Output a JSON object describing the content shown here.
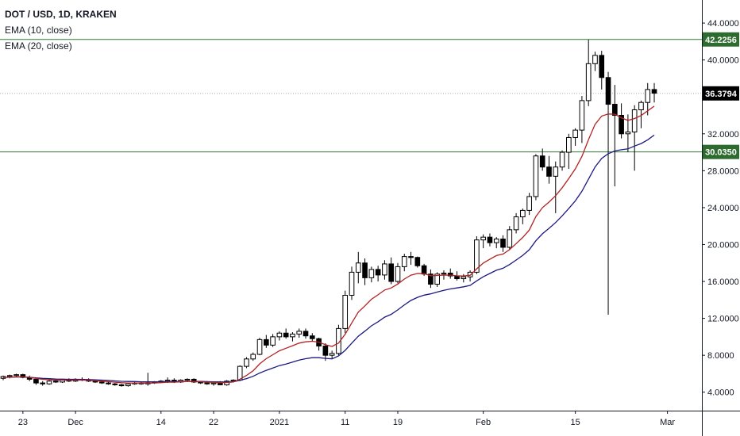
{
  "legend": {
    "title": "DOT / USD, 1D, KRAKEN",
    "ema10": "EMA (10, close)",
    "ema20": "EMA (20, close)"
  },
  "colors": {
    "up_body": "#ffffff",
    "down_body": "#000000",
    "wick": "#000000",
    "ema10": "#b22222",
    "ema20": "#1a1a80",
    "hline": "#2e7d32",
    "current_line": "#b0b0b0",
    "badge_green": "#2e6b2e",
    "badge_current": "#000000"
  },
  "chart_data": {
    "type": "candlestick",
    "title": "DOT / USD, 1D, KRAKEN",
    "y_axis": {
      "side": "right",
      "range": [
        2.0,
        46.5
      ],
      "ticks": [
        "44.0000",
        "40.0000",
        "36.0000",
        "32.0000",
        "28.0000",
        "24.0000",
        "20.0000",
        "16.0000",
        "12.0000",
        "8.0000",
        "4.0000"
      ],
      "tick_values": [
        44,
        40,
        36,
        32,
        28,
        24,
        20,
        16,
        12,
        8,
        4
      ]
    },
    "x_axis": {
      "first_date": "2020-11-20",
      "last_date": "2021-03-02",
      "labels": [
        {
          "label": "23",
          "date": "2020-11-23"
        },
        {
          "label": "Dec",
          "date": "2020-12-01"
        },
        {
          "label": "14",
          "date": "2020-12-14"
        },
        {
          "label": "22",
          "date": "2020-12-22"
        },
        {
          "label": "2021",
          "date": "2021-01-01"
        },
        {
          "label": "11",
          "date": "2021-01-11"
        },
        {
          "label": "19",
          "date": "2021-01-19"
        },
        {
          "label": "Feb",
          "date": "2021-02-01"
        },
        {
          "label": "15",
          "date": "2021-02-15"
        },
        {
          "label": "Mar",
          "date": "2021-03-01"
        }
      ],
      "range": [
        "2020-11-20",
        "2021-03-06"
      ]
    },
    "horizontal_lines": [
      {
        "value": 42.2256,
        "label": "42.2256",
        "style": "solid"
      },
      {
        "value": 30.035,
        "label": "30.0350",
        "style": "solid"
      }
    ],
    "current_price": {
      "value": 36.3794,
      "label": "36.3794",
      "style": "dotted"
    },
    "grid": false,
    "series_ohlc": [
      [
        5.5,
        5.8,
        5.3,
        5.7
      ],
      [
        5.7,
        5.9,
        5.5,
        5.8
      ],
      [
        5.8,
        6.0,
        5.6,
        5.9
      ],
      [
        5.9,
        6.0,
        5.5,
        5.6
      ],
      [
        5.6,
        5.8,
        5.2,
        5.4
      ],
      [
        5.4,
        5.6,
        4.8,
        5.0
      ],
      [
        5.0,
        5.2,
        4.7,
        4.9
      ],
      [
        4.9,
        5.3,
        4.8,
        5.2
      ],
      [
        5.2,
        5.4,
        5.0,
        5.1
      ],
      [
        5.1,
        5.4,
        5.0,
        5.3
      ],
      [
        5.3,
        5.5,
        5.1,
        5.2
      ],
      [
        5.2,
        5.5,
        5.1,
        5.4
      ],
      [
        5.4,
        5.6,
        5.2,
        5.3
      ],
      [
        5.3,
        5.5,
        5.1,
        5.2
      ],
      [
        5.2,
        5.3,
        5.0,
        5.1
      ],
      [
        5.1,
        5.2,
        4.9,
        5.0
      ],
      [
        5.0,
        5.1,
        4.8,
        4.9
      ],
      [
        4.9,
        5.0,
        4.7,
        4.8
      ],
      [
        4.8,
        4.9,
        4.6,
        4.7
      ],
      [
        4.7,
        5.0,
        4.6,
        4.9
      ],
      [
        4.9,
        5.1,
        4.8,
        5.0
      ],
      [
        5.0,
        5.1,
        4.8,
        4.9
      ],
      [
        4.9,
        6.1,
        4.7,
        5.0
      ],
      [
        5.0,
        5.2,
        4.9,
        5.1
      ],
      [
        5.1,
        5.3,
        5.0,
        5.2
      ],
      [
        5.2,
        5.6,
        5.0,
        5.3
      ],
      [
        5.3,
        5.5,
        5.0,
        5.1
      ],
      [
        5.1,
        5.4,
        5.0,
        5.3
      ],
      [
        5.3,
        5.5,
        5.1,
        5.4
      ],
      [
        5.4,
        5.5,
        5.0,
        5.1
      ],
      [
        5.1,
        5.2,
        4.9,
        5.0
      ],
      [
        5.0,
        5.2,
        4.8,
        4.9
      ],
      [
        4.9,
        5.1,
        4.7,
        5.0
      ],
      [
        5.0,
        5.2,
        4.8,
        4.8
      ],
      [
        4.8,
        5.3,
        4.7,
        5.2
      ],
      [
        5.2,
        5.4,
        5.1,
        5.3
      ],
      [
        5.3,
        6.9,
        5.2,
        6.8
      ],
      [
        6.8,
        7.8,
        6.6,
        7.6
      ],
      [
        7.6,
        8.3,
        7.4,
        8.1
      ],
      [
        8.1,
        9.9,
        8.0,
        9.7
      ],
      [
        9.7,
        10.2,
        8.8,
        9.1
      ],
      [
        9.1,
        10.3,
        8.9,
        10.0
      ],
      [
        10.0,
        10.6,
        9.6,
        10.4
      ],
      [
        10.4,
        10.9,
        9.8,
        10.0
      ],
      [
        10.0,
        10.5,
        9.5,
        10.3
      ],
      [
        10.3,
        10.9,
        9.9,
        10.6
      ],
      [
        10.6,
        10.9,
        9.8,
        10.1
      ],
      [
        10.1,
        10.4,
        9.5,
        9.8
      ],
      [
        9.8,
        9.9,
        8.5,
        9.0
      ],
      [
        9.0,
        9.3,
        7.4,
        8.0
      ],
      [
        8.0,
        8.5,
        7.6,
        8.2
      ],
      [
        8.2,
        11.3,
        8.0,
        10.9
      ],
      [
        10.9,
        15.0,
        10.4,
        14.5
      ],
      [
        14.5,
        17.6,
        14.0,
        17.0
      ],
      [
        17.0,
        19.2,
        15.8,
        18.0
      ],
      [
        18.0,
        18.5,
        15.6,
        16.4
      ],
      [
        16.4,
        17.6,
        15.9,
        17.3
      ],
      [
        17.3,
        17.7,
        16.0,
        16.7
      ],
      [
        16.7,
        18.3,
        16.2,
        17.9
      ],
      [
        17.9,
        18.6,
        15.7,
        16.0
      ],
      [
        16.0,
        18.0,
        15.8,
        17.6
      ],
      [
        17.6,
        19.0,
        17.1,
        18.7
      ],
      [
        18.7,
        19.2,
        17.8,
        18.6
      ],
      [
        18.6,
        18.7,
        17.5,
        17.7
      ],
      [
        17.7,
        17.9,
        16.6,
        16.8
      ],
      [
        16.8,
        17.3,
        15.3,
        15.7
      ],
      [
        15.7,
        17.0,
        15.4,
        16.8
      ],
      [
        16.8,
        17.2,
        16.2,
        16.9
      ],
      [
        16.9,
        17.4,
        16.3,
        16.6
      ],
      [
        16.6,
        17.1,
        16.1,
        16.3
      ],
      [
        16.3,
        16.8,
        15.9,
        16.5
      ],
      [
        16.5,
        17.2,
        16.0,
        17.0
      ],
      [
        17.0,
        20.9,
        16.8,
        20.5
      ],
      [
        20.5,
        21.1,
        19.6,
        20.8
      ],
      [
        20.8,
        21.2,
        19.8,
        20.2
      ],
      [
        20.2,
        20.8,
        19.6,
        20.6
      ],
      [
        20.6,
        21.0,
        19.2,
        19.7
      ],
      [
        19.7,
        22.0,
        19.4,
        21.6
      ],
      [
        21.6,
        23.4,
        21.2,
        23.0
      ],
      [
        23.0,
        23.9,
        22.2,
        23.7
      ],
      [
        23.7,
        25.6,
        23.2,
        25.2
      ],
      [
        25.2,
        29.8,
        24.8,
        29.6
      ],
      [
        29.6,
        30.4,
        28.0,
        28.4
      ],
      [
        28.4,
        29.6,
        26.6,
        27.4
      ],
      [
        27.4,
        29.0,
        23.4,
        28.4
      ],
      [
        28.4,
        30.2,
        28.0,
        30.0
      ],
      [
        30.0,
        32.0,
        28.2,
        31.6
      ],
      [
        31.6,
        32.6,
        30.7,
        32.4
      ],
      [
        32.4,
        36.1,
        31.0,
        35.6
      ],
      [
        35.6,
        42.2,
        35.0,
        39.6
      ],
      [
        39.6,
        40.9,
        38.8,
        40.5
      ],
      [
        40.5,
        41.0,
        36.8,
        38.1
      ],
      [
        38.1,
        38.7,
        12.4,
        35.2
      ],
      [
        35.2,
        37.3,
        26.3,
        34.0
      ],
      [
        34.0,
        35.3,
        31.5,
        32.0
      ],
      [
        32.0,
        34.1,
        30.0,
        32.2
      ],
      [
        32.2,
        35.1,
        28.0,
        34.6
      ],
      [
        34.6,
        35.6,
        32.6,
        35.4
      ],
      [
        35.4,
        37.5,
        34.0,
        36.8
      ],
      [
        36.8,
        37.5,
        35.4,
        36.4
      ]
    ],
    "ema10": [
      5.6,
      5.62,
      5.67,
      5.66,
      5.61,
      5.5,
      5.39,
      5.35,
      5.31,
      5.31,
      5.29,
      5.31,
      5.31,
      5.29,
      5.25,
      5.2,
      5.14,
      5.08,
      5.02,
      5.0,
      5.0,
      4.98,
      4.98,
      5.0,
      5.03,
      5.08,
      5.08,
      5.12,
      5.16,
      5.16,
      5.13,
      5.09,
      5.07,
      5.02,
      5.05,
      5.1,
      5.41,
      5.81,
      6.32,
      7.07,
      7.63,
      8.06,
      8.49,
      8.76,
      9.04,
      9.32,
      9.46,
      9.52,
      9.42,
      9.14,
      8.96,
      9.32,
      10.27,
      11.5,
      12.68,
      13.36,
      14.07,
      14.55,
      15.07,
      15.3,
      15.72,
      16.26,
      16.68,
      16.86,
      16.85,
      16.62,
      16.65,
      16.69,
      16.68,
      16.61,
      16.59,
      16.67,
      17.37,
      18.0,
      18.4,
      18.8,
      18.97,
      19.45,
      20.1,
      20.77,
      21.57,
      23.03,
      24.0,
      24.6,
      25.3,
      26.16,
      27.15,
      28.2,
      29.55,
      31.37,
      33.03,
      33.92,
      34.15,
      34.12,
      33.73,
      33.45,
      33.66,
      33.98,
      34.49,
      35.0
    ],
    "ema20": [
      5.6,
      5.62,
      5.64,
      5.64,
      5.62,
      5.56,
      5.5,
      5.46,
      5.42,
      5.41,
      5.39,
      5.39,
      5.38,
      5.37,
      5.34,
      5.31,
      5.27,
      5.22,
      5.18,
      5.16,
      5.15,
      5.13,
      5.12,
      5.12,
      5.13,
      5.14,
      5.14,
      5.16,
      5.17,
      5.18,
      5.17,
      5.14,
      5.13,
      5.11,
      5.11,
      5.13,
      5.28,
      5.47,
      5.72,
      6.07,
      6.36,
      6.61,
      6.88,
      7.04,
      7.26,
      7.48,
      7.63,
      7.74,
      7.74,
      7.66,
      7.61,
      7.93,
      8.53,
      9.31,
      10.07,
      10.62,
      11.19,
      11.63,
      12.13,
      12.44,
      12.92,
      13.46,
      13.94,
      14.28,
      14.52,
      14.65,
      14.85,
      15.04,
      15.19,
      15.3,
      15.42,
      15.57,
      16.06,
      16.51,
      16.86,
      17.21,
      17.43,
      17.83,
      18.32,
      18.83,
      19.44,
      20.41,
      21.17,
      21.76,
      22.39,
      23.12,
      23.9,
      24.73,
      25.77,
      27.09,
      28.41,
      29.33,
      29.84,
      30.14,
      30.27,
      30.37,
      30.68,
      30.94,
      31.35,
      31.86
    ]
  }
}
